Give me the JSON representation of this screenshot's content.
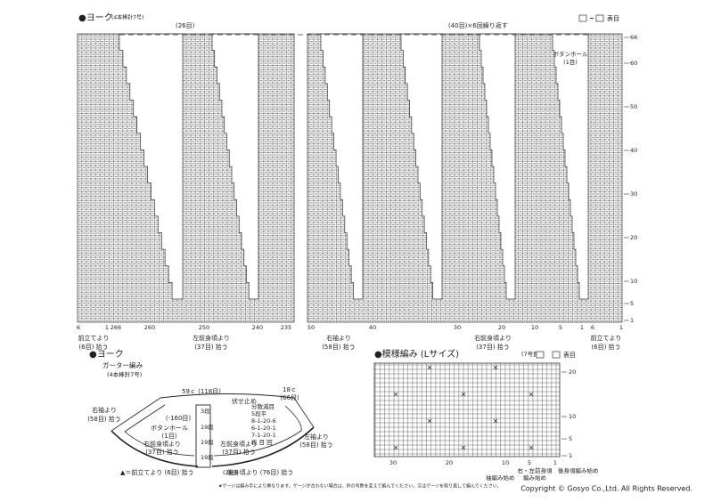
{
  "top_chart": {
    "title": "●ヨーク",
    "needle": "(4本棒針7号)",
    "stitches": "(26目)",
    "repeat": "(40目)×6回繰り返す",
    "legend": "表目",
    "rows": [
      "66",
      "60",
      "50",
      "40",
      "30",
      "20",
      "10",
      "5",
      "1"
    ],
    "buttonhole": [
      "ボタンホール",
      "(1目)"
    ],
    "columns": [
      "6",
      "1",
      "266",
      "260",
      "250",
      "240",
      "235",
      "50",
      "40",
      "30",
      "20",
      "10",
      "5",
      "1",
      "6",
      "1"
    ],
    "pickups": [
      [
        "前立てより",
        "(6目) 拾う"
      ],
      [
        "左前身頃より",
        "(37目) 拾う"
      ],
      [
        "右袖より",
        "(58目) 拾う"
      ],
      [
        "右前身頃より",
        "(37目) 拾う"
      ],
      [
        "前立てより",
        "(6目) 拾う"
      ]
    ]
  },
  "yoke_diagram": {
    "title": "●ヨーク",
    "stitch": "ガーター編み",
    "needle": "(4本棒針7号)",
    "top": "59ｃ (118目)",
    "height": [
      "18ｃ",
      "(66段)"
    ],
    "bind_off": "伏せ止め",
    "decrease": [
      "分散減目",
      "5段平",
      "8-1-20-6",
      "6-1-20-1",
      "7-1-20-1",
      "段 目 回"
    ],
    "right_sleeve": [
      "右袖より",
      "(58目) 拾う"
    ],
    "minus": "(-160目)",
    "buttonhole": [
      "ボタンホール",
      "(1目)"
    ],
    "rows": [
      "3段",
      "19段",
      "19段",
      "19段",
      "(2段)"
    ],
    "right_front": [
      "右前身頃より",
      "(37目) 拾う"
    ],
    "left_front": [
      "左前身頃より",
      "(37目) 拾う"
    ],
    "left_sleeve": [
      "左袖より",
      "(58目) 拾う"
    ],
    "back": "後身頃より (76目) 拾う",
    "note": "▲＝前立てより (6目) 拾う"
  },
  "pattern_chart": {
    "title": "●模様編み (Lサイズ)",
    "needle": "(7号針)",
    "legend": "表目",
    "rows": [
      "20",
      "10",
      "5",
      "1"
    ],
    "columns": [
      "30",
      "20",
      "10",
      "5",
      "1"
    ],
    "starts": [
      "右・左前身頃",
      "編み始め",
      "後身頃編み始め",
      "袖編み始め"
    ]
  },
  "footnote": "★ゲージは編み手により異なります。ゲージが合わない場合は、針の号数を変えて編んでください。又はゲージを取り直して編んでください。",
  "copyright": "Copyright © Gosyo Co.,Ltd. All Rights Reserved."
}
